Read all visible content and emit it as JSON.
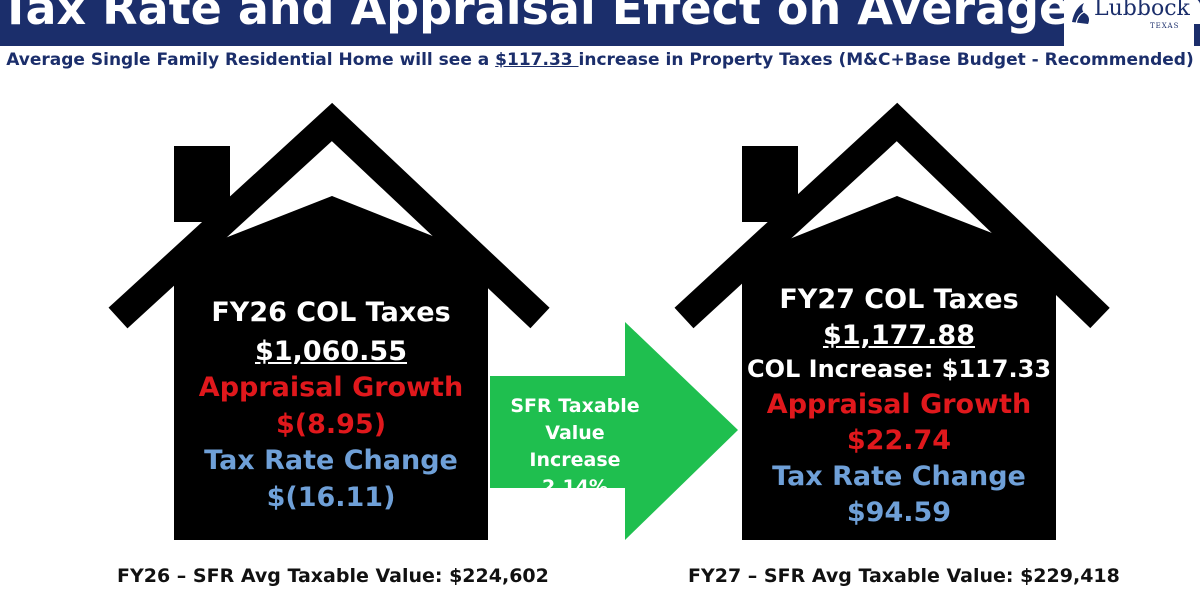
{
  "header": {
    "title": "Tax Rate and Appraisal Effect on Average Home",
    "logo_text": "Lubbock",
    "logo_sub": "TEXAS"
  },
  "subtitle": {
    "prefix": "Average Single Family Residential Home will see a ",
    "amount": "$117.33 ",
    "suffix": "increase in Property Taxes (M&C+Base Budget - Recommended)"
  },
  "fy26": {
    "title": "FY26 COL Taxes",
    "total": "$1,060.55",
    "appraisal_label": "Appraisal Growth",
    "appraisal_value": "$(8.95)",
    "rate_label": "Tax Rate Change",
    "rate_value": "$(16.11)",
    "footer": "FY26 – SFR Avg Taxable Value: $224,602"
  },
  "arrow": {
    "line1": "SFR Taxable",
    "line2": "Value Increase",
    "line3": "2.14%"
  },
  "fy27": {
    "title": "FY27 COL Taxes",
    "total": "$1,177.88",
    "increase": "COL Increase: $117.33",
    "appraisal_label": "Appraisal Growth",
    "appraisal_value": "$22.74",
    "rate_label": "Tax Rate Change",
    "rate_value": "$94.59",
    "footer": "FY27 – SFR Avg Taxable Value: $229,418"
  },
  "colors": {
    "header_bg": "#1b2e6b",
    "arrow": "#1fbf4f",
    "house": "#000000",
    "red_text": "#e0181c",
    "blue_text": "#6fa0d8"
  }
}
